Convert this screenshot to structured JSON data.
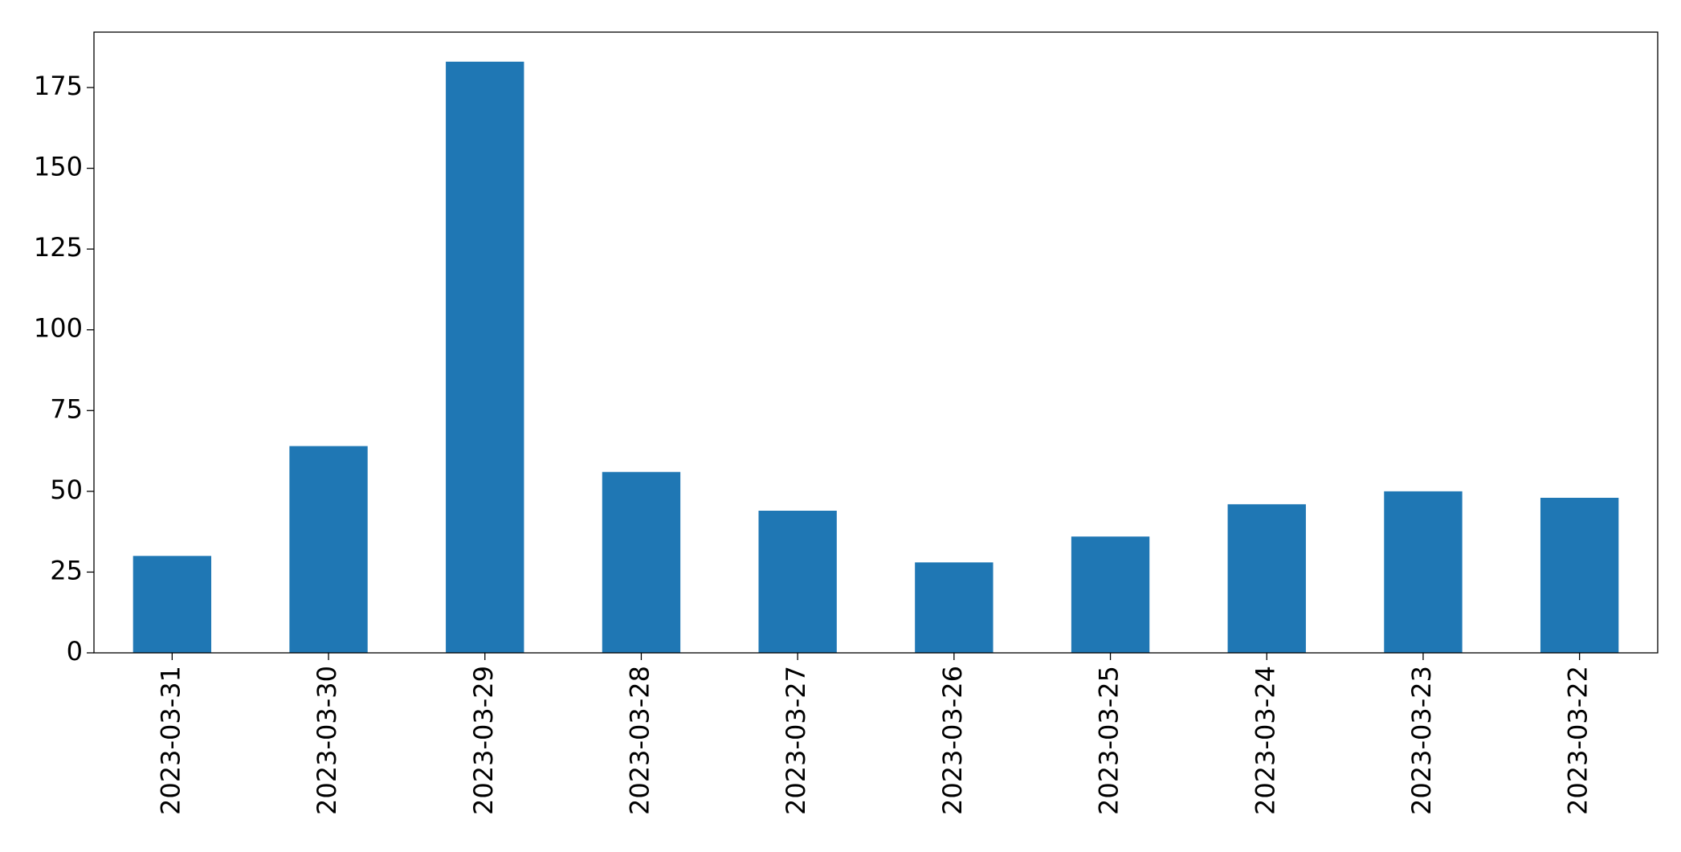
{
  "chart_data": {
    "type": "bar",
    "categories": [
      "2023-03-31",
      "2023-03-30",
      "2023-03-29",
      "2023-03-28",
      "2023-03-27",
      "2023-03-26",
      "2023-03-25",
      "2023-03-24",
      "2023-03-23",
      "2023-03-22"
    ],
    "values": [
      30,
      64,
      183,
      56,
      44,
      28,
      36,
      46,
      50,
      48
    ],
    "color": "#1f77b4",
    "ylim": [
      0,
      192.15
    ],
    "yticks": [
      0,
      25,
      50,
      75,
      100,
      125,
      150,
      175
    ],
    "grid": false
  }
}
